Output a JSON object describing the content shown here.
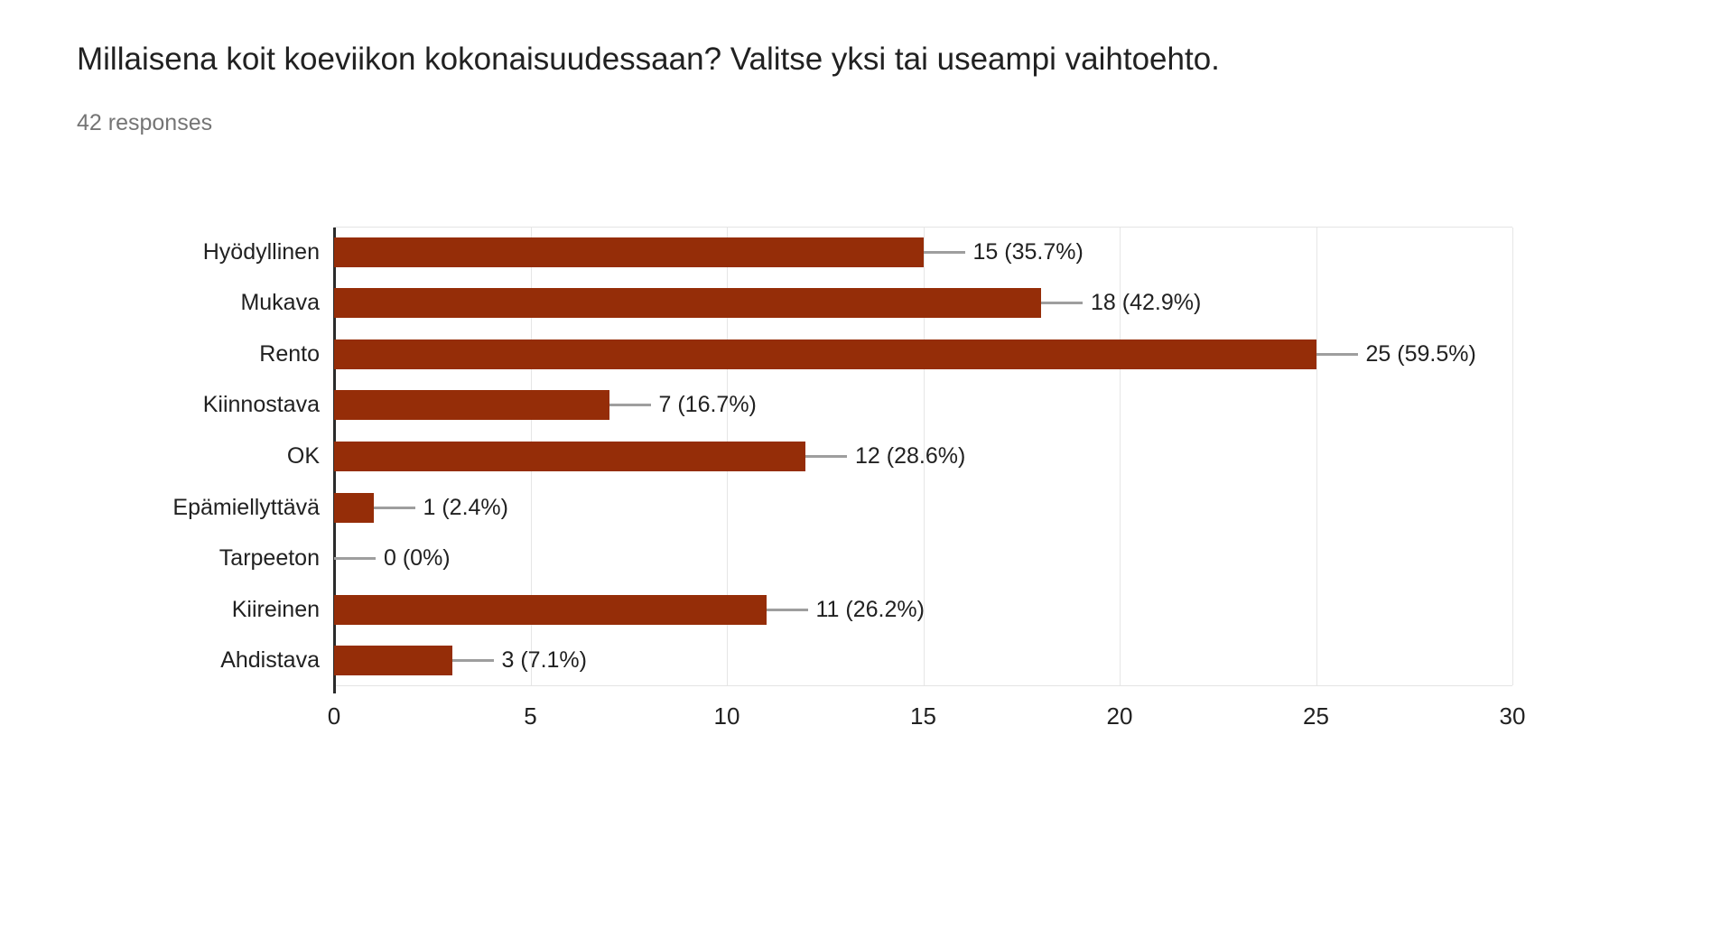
{
  "header": {
    "title": "Millaisena koit koeviikon kokonaisuudessaan? Valitse yksi tai useampi vaihtoehto.",
    "responses_count": "42 responses"
  },
  "chart_data": {
    "type": "bar",
    "orientation": "horizontal",
    "title": "Millaisena koit koeviikon kokonaisuudessaan? Valitse yksi tai useampi vaihtoehto.",
    "subtitle": "42 responses",
    "total_responses": 42,
    "categories": [
      "Hyödyllinen",
      "Mukava",
      "Rento",
      "Kiinnostava",
      "OK",
      "Epämiellyttävä",
      "Tarpeeton",
      "Kiireinen",
      "Ahdistava"
    ],
    "values": [
      15,
      18,
      25,
      7,
      12,
      1,
      0,
      11,
      3
    ],
    "percentages": [
      35.7,
      42.9,
      59.5,
      16.7,
      28.6,
      2.4,
      0,
      26.2,
      7.1
    ],
    "value_labels": [
      "15 (35.7%)",
      "18 (42.9%)",
      "25 (59.5%)",
      "7 (16.7%)",
      "12 (28.6%)",
      "1 (2.4%)",
      "0 (0%)",
      "11 (26.2%)",
      "3 (7.1%)"
    ],
    "xlabel": "",
    "ylabel": "",
    "xlim": [
      0,
      30
    ],
    "x_ticks": [
      0,
      5,
      10,
      15,
      20,
      25,
      30
    ],
    "grid": true,
    "legend": false
  },
  "colors": {
    "bar": "#952d08",
    "gridline": "#e6e6e6",
    "axis": "#2b2b2b",
    "leader_line": "#9e9e9e",
    "title_text": "#212121",
    "subtitle_text": "#757575"
  }
}
